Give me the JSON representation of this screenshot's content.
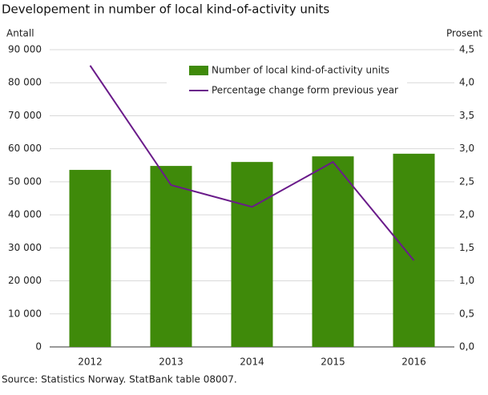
{
  "chart_data": {
    "type": "bar_line",
    "title": "Developement in number of local kind-of-activity units",
    "y_label": "Antall",
    "y2_label": "Prosent",
    "source": "Source: Statistics Norway. StatBank table 08007.",
    "categories": [
      "2012",
      "2013",
      "2014",
      "2015",
      "2016"
    ],
    "series": [
      {
        "name": "Number of local kind-of-activity units",
        "type": "bar",
        "color": "#3f8a0a",
        "values": [
          53600,
          54800,
          56000,
          57700,
          58500
        ]
      },
      {
        "name": "Percentage change form previous year",
        "type": "line",
        "axis": "y2",
        "color": "#6a1b8a",
        "values": [
          4.26,
          2.45,
          2.12,
          2.8,
          1.31
        ]
      }
    ],
    "ylim": [
      0,
      90000
    ],
    "yticks": [
      0,
      {
        "value": 10000,
        "label": "10 000"
      },
      {
        "value": 20000,
        "label": "20 000"
      },
      {
        "value": 30000,
        "label": "30 000"
      },
      {
        "value": 40000,
        "label": "40 000"
      },
      {
        "value": 50000,
        "label": "50 000"
      },
      {
        "value": 60000,
        "label": "60 000"
      },
      {
        "value": 70000,
        "label": "70 000"
      },
      {
        "value": 80000,
        "label": "80 000"
      },
      {
        "value": 90000,
        "label": "90 000"
      }
    ],
    "y2lim": [
      0,
      4.5
    ],
    "y2ticks": [
      {
        "value": 0,
        "label": "0,0"
      },
      {
        "value": 0.5,
        "label": "0,5"
      },
      {
        "value": 1,
        "label": "1,0"
      },
      {
        "value": 1.5,
        "label": "1,5"
      },
      {
        "value": 2,
        "label": "2,0"
      },
      {
        "value": 2.5,
        "label": "2,5"
      },
      {
        "value": 3,
        "label": "3,0"
      },
      {
        "value": 3.5,
        "label": "3,5"
      },
      {
        "value": 4,
        "label": "4,0"
      },
      {
        "value": 4.5,
        "label": "4,5"
      }
    ],
    "grid": true,
    "legend": "upper-center"
  }
}
